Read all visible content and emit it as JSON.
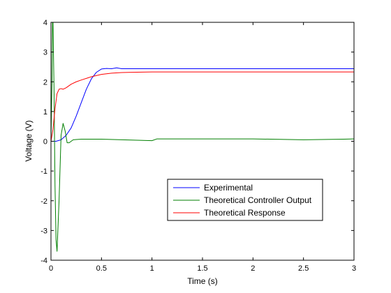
{
  "chart_data": {
    "type": "line",
    "title": "",
    "xlabel": "Time (s)",
    "ylabel": "Voltage (V)",
    "xlim": [
      0,
      3
    ],
    "ylim": [
      -4,
      4
    ],
    "xticks": [
      0,
      0.5,
      1,
      1.5,
      2,
      2.5,
      3
    ],
    "yticks": [
      -4,
      -3,
      -2,
      -1,
      0,
      1,
      2,
      3,
      4
    ],
    "xtick_labels": [
      "0",
      "0.5",
      "1",
      "1.5",
      "2",
      "2.5",
      "3"
    ],
    "ytick_labels": [
      "-4",
      "-3",
      "-2",
      "-1",
      "0",
      "1",
      "2",
      "3",
      "4"
    ],
    "grid": false,
    "legend_position": "lower-right",
    "series": [
      {
        "name": "Experimental",
        "color": "#0000ff",
        "x": [
          0,
          0.05,
          0.1,
          0.15,
          0.2,
          0.25,
          0.3,
          0.35,
          0.4,
          0.45,
          0.5,
          0.55,
          0.6,
          0.65,
          0.7,
          0.8,
          1.0,
          1.5,
          2.0,
          2.5,
          3.0
        ],
        "y": [
          0.0,
          0.0,
          0.05,
          0.2,
          0.45,
          0.85,
          1.3,
          1.75,
          2.1,
          2.32,
          2.43,
          2.45,
          2.44,
          2.47,
          2.44,
          2.44,
          2.44,
          2.44,
          2.44,
          2.44,
          2.44
        ]
      },
      {
        "name": "Theoretical Controller Output",
        "color": "#007f00",
        "x": [
          0,
          0.01,
          0.015,
          0.02,
          0.03,
          0.04,
          0.05,
          0.06,
          0.08,
          0.1,
          0.12,
          0.14,
          0.16,
          0.18,
          0.2,
          0.22,
          0.25,
          0.3,
          0.5,
          1.0,
          1.05,
          1.5,
          2.0,
          2.5,
          2.9,
          3.0
        ],
        "y": [
          0,
          2.0,
          4.0,
          4.0,
          1.8,
          -1.5,
          -3.3,
          -3.7,
          -2.0,
          0.2,
          0.6,
          0.35,
          -0.05,
          -0.05,
          0.0,
          0.05,
          0.06,
          0.07,
          0.07,
          0.02,
          0.08,
          0.08,
          0.08,
          0.05,
          0.07,
          0.08
        ]
      },
      {
        "name": "Theoretical Response",
        "color": "#ff0000",
        "x": [
          0,
          0.02,
          0.04,
          0.06,
          0.08,
          0.1,
          0.12,
          0.15,
          0.2,
          0.25,
          0.3,
          0.4,
          0.5,
          0.6,
          0.7,
          0.8,
          1.0,
          1.5,
          2.0,
          2.5,
          2.95,
          3.0
        ],
        "y": [
          0,
          0.4,
          1.1,
          1.6,
          1.75,
          1.77,
          1.75,
          1.8,
          1.92,
          2.0,
          2.06,
          2.17,
          2.25,
          2.29,
          2.31,
          2.32,
          2.33,
          2.33,
          2.33,
          2.33,
          2.33,
          2.33
        ]
      }
    ]
  }
}
